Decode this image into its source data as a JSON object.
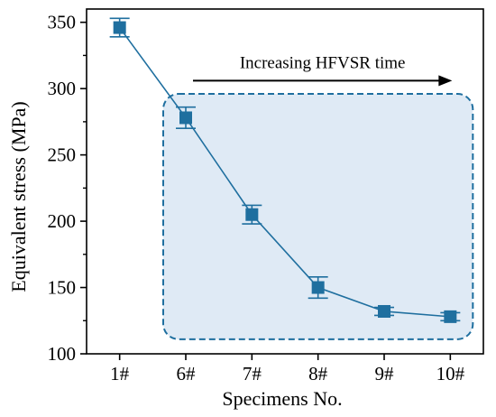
{
  "chart_data": {
    "type": "line",
    "categories": [
      "1#",
      "6#",
      "7#",
      "8#",
      "9#",
      "10#"
    ],
    "series": [
      {
        "values": [
          346,
          278,
          205,
          150,
          132,
          128
        ],
        "errors": [
          7,
          8,
          7,
          8,
          3,
          3
        ],
        "color": "#1f6f9f"
      }
    ],
    "xlabel": "Specimens No.",
    "ylabel": "Equivalent stress (MPa)",
    "ylim": [
      100,
      360
    ],
    "yticks": [
      100,
      150,
      200,
      250,
      300,
      350
    ],
    "annotation": {
      "text": "Increasing HFVSR time",
      "from_category": "6#",
      "to_category": "10#"
    },
    "highlight_region": {
      "from_category": "6#",
      "to_category": "10#",
      "fill": "#dfeaf5",
      "stroke": "#1f6f9f"
    },
    "grid": false,
    "legend": "none"
  }
}
